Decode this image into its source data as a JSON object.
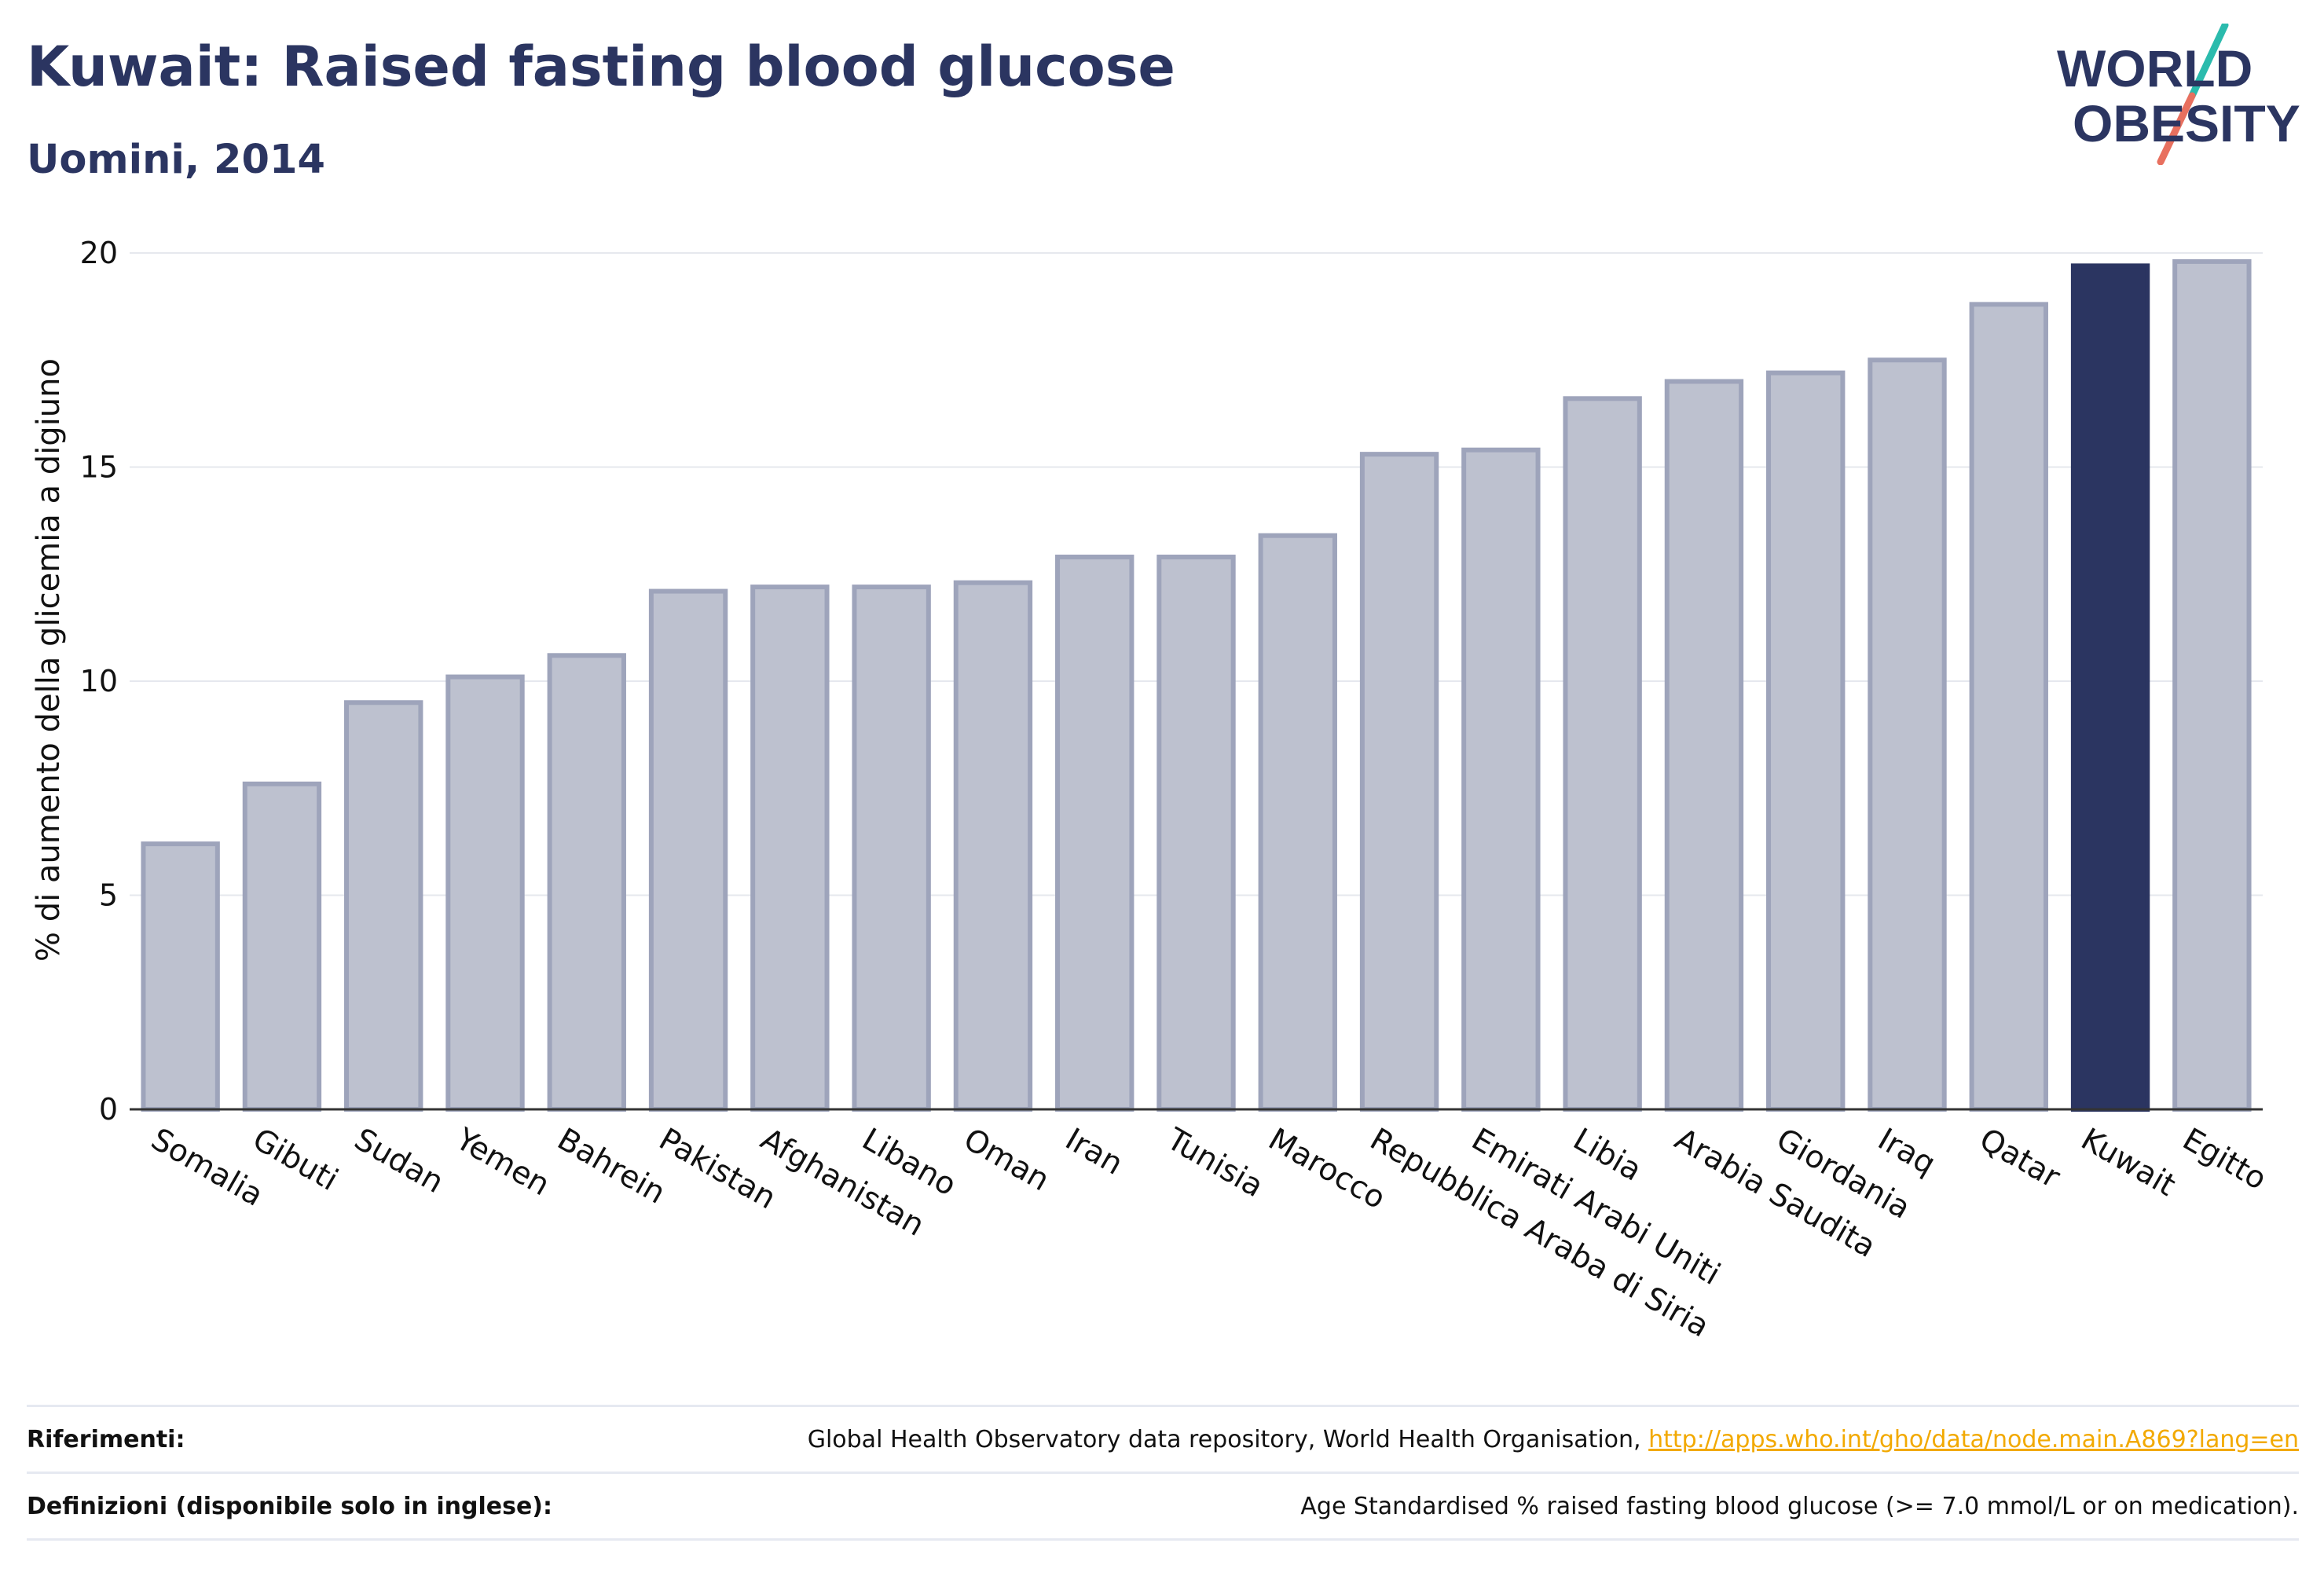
{
  "header": {
    "title": "Kuwait: Raised fasting blood glucose",
    "subtitle": "Uomini, 2014"
  },
  "logo": {
    "line1": "WORLD",
    "line2": "OBESITY",
    "colors": {
      "text": "#2b3561",
      "slash_top": "#2bbbad",
      "slash_bottom": "#e8705f"
    }
  },
  "chart_data": {
    "type": "bar",
    "title": "Kuwait: Raised fasting blood glucose",
    "subtitle": "Uomini, 2014",
    "ylabel": "% di aumento della glicemia a digiuno",
    "xlabel": "",
    "ylim": [
      0,
      20
    ],
    "yticks": [
      0,
      5,
      10,
      15,
      20
    ],
    "grid": true,
    "highlight": "Kuwait",
    "colors": {
      "bar": "#bdc1cf",
      "bar_border": "#9ea4bb",
      "highlight": "#2b3561",
      "grid": "#e6e8ee",
      "axis": "#333333"
    },
    "categories": [
      "Somalia",
      "Gibuti",
      "Sudan",
      "Yemen",
      "Bahrein",
      "Pakistan",
      "Afghanistan",
      "Libano",
      "Oman",
      "Iran",
      "Tunisia",
      "Marocco",
      "Repubblica Araba di Siria",
      "Emirati Arabi Uniti",
      "Libia",
      "Arabia Saudita",
      "Giordania",
      "Iraq",
      "Qatar",
      "Kuwait",
      "Egitto"
    ],
    "values": [
      6.2,
      7.6,
      9.5,
      10.1,
      10.6,
      12.1,
      12.2,
      12.2,
      12.3,
      12.9,
      12.9,
      13.4,
      15.3,
      15.4,
      16.6,
      17.0,
      17.2,
      17.5,
      18.8,
      19.7,
      19.8
    ]
  },
  "footer": {
    "references_label": "Riferimenti:",
    "references_text": "Global Health Observatory data repository, World Health Organisation,",
    "references_link": "http://apps.who.int/gho/data/node.main.A869?lang=en",
    "definitions_label": "Definizioni (disponibile solo in inglese):",
    "definitions_text": "Age Standardised % raised fasting blood glucose (>= 7.0 mmol/L or on medication)."
  }
}
